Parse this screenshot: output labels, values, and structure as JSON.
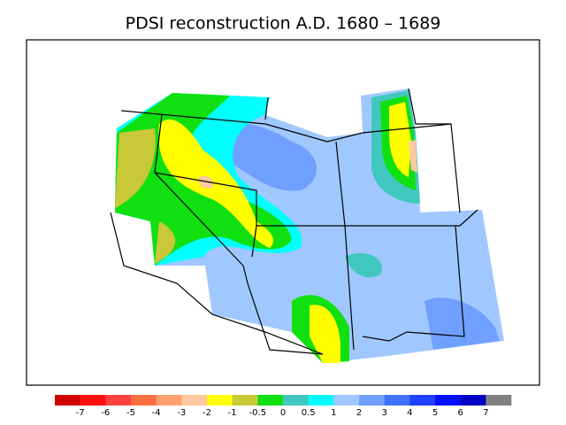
{
  "title": "PDSI reconstruction A.D. 1680 – 1689",
  "colorbar": {
    "ticks": [
      -7,
      -6,
      -5,
      -4,
      -3,
      -2,
      -1,
      -0.5,
      0,
      0.5,
      1,
      2,
      3,
      4,
      5,
      6,
      7
    ],
    "colors": [
      "#d00000",
      "#ff1010",
      "#ff4040",
      "#ff7040",
      "#ffa070",
      "#ffc8a0",
      "#ffff00",
      "#c8c838",
      "#10e010",
      "#40c8c0",
      "#00ffff",
      "#a0c8ff",
      "#70a0ff",
      "#4070ff",
      "#2040ff",
      "#0010ff",
      "#0000c8",
      "#808080"
    ]
  }
}
